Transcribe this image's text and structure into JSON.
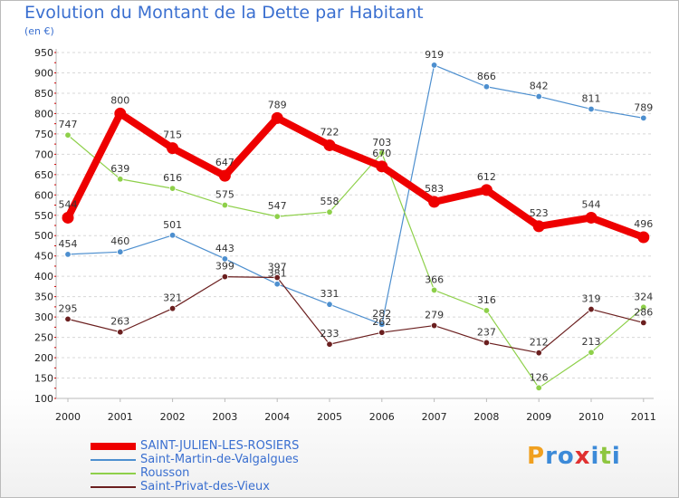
{
  "header": {
    "title": "Evolution du Montant de la Dette par Habitant",
    "subtitle": "(en €)"
  },
  "brand": {
    "letters": [
      "P",
      "r",
      "o",
      "x",
      "i",
      "t",
      "i"
    ],
    "colors": [
      "#f0a020",
      "#3c8ad8",
      "#3c8ad8",
      "#e03030",
      "#3c8ad8",
      "#8ec63f",
      "#3c8ad8"
    ]
  },
  "chart_data": {
    "type": "line",
    "title": "Evolution du Montant de la Dette par Habitant",
    "subtitle": "(en €)",
    "xlabel": "",
    "ylabel": "",
    "x": [
      "2000",
      "2001",
      "2002",
      "2003",
      "2004",
      "2005",
      "2006",
      "2007",
      "2008",
      "2009",
      "2010",
      "2011"
    ],
    "ylim": [
      100,
      950
    ],
    "yticks": [
      100,
      150,
      200,
      250,
      300,
      350,
      400,
      450,
      500,
      550,
      600,
      650,
      700,
      750,
      800,
      850,
      900,
      950
    ],
    "grid": "horizontal dashed",
    "legend_position": "bottom-left",
    "series": [
      {
        "name": "SAINT-JULIEN-LES-ROSIERS",
        "color": "#ee0000",
        "emphasis": true,
        "values": [
          544,
          800,
          715,
          647,
          789,
          722,
          670,
          583,
          612,
          523,
          544,
          496
        ]
      },
      {
        "name": "Saint-Martin-de-Valgalgues",
        "color": "#4d8fcf",
        "values": [
          454,
          460,
          501,
          443,
          381,
          331,
          282,
          919,
          866,
          842,
          811,
          789
        ]
      },
      {
        "name": "Rousson",
        "color": "#8ed04a",
        "values": [
          747,
          639,
          616,
          575,
          547,
          558,
          703,
          366,
          316,
          126,
          213,
          324
        ]
      },
      {
        "name": "Saint-Privat-des-Vieux",
        "color": "#6b1f1f",
        "values": [
          295,
          263,
          321,
          399,
          397,
          233,
          262,
          279,
          237,
          212,
          319,
          286
        ]
      }
    ]
  }
}
